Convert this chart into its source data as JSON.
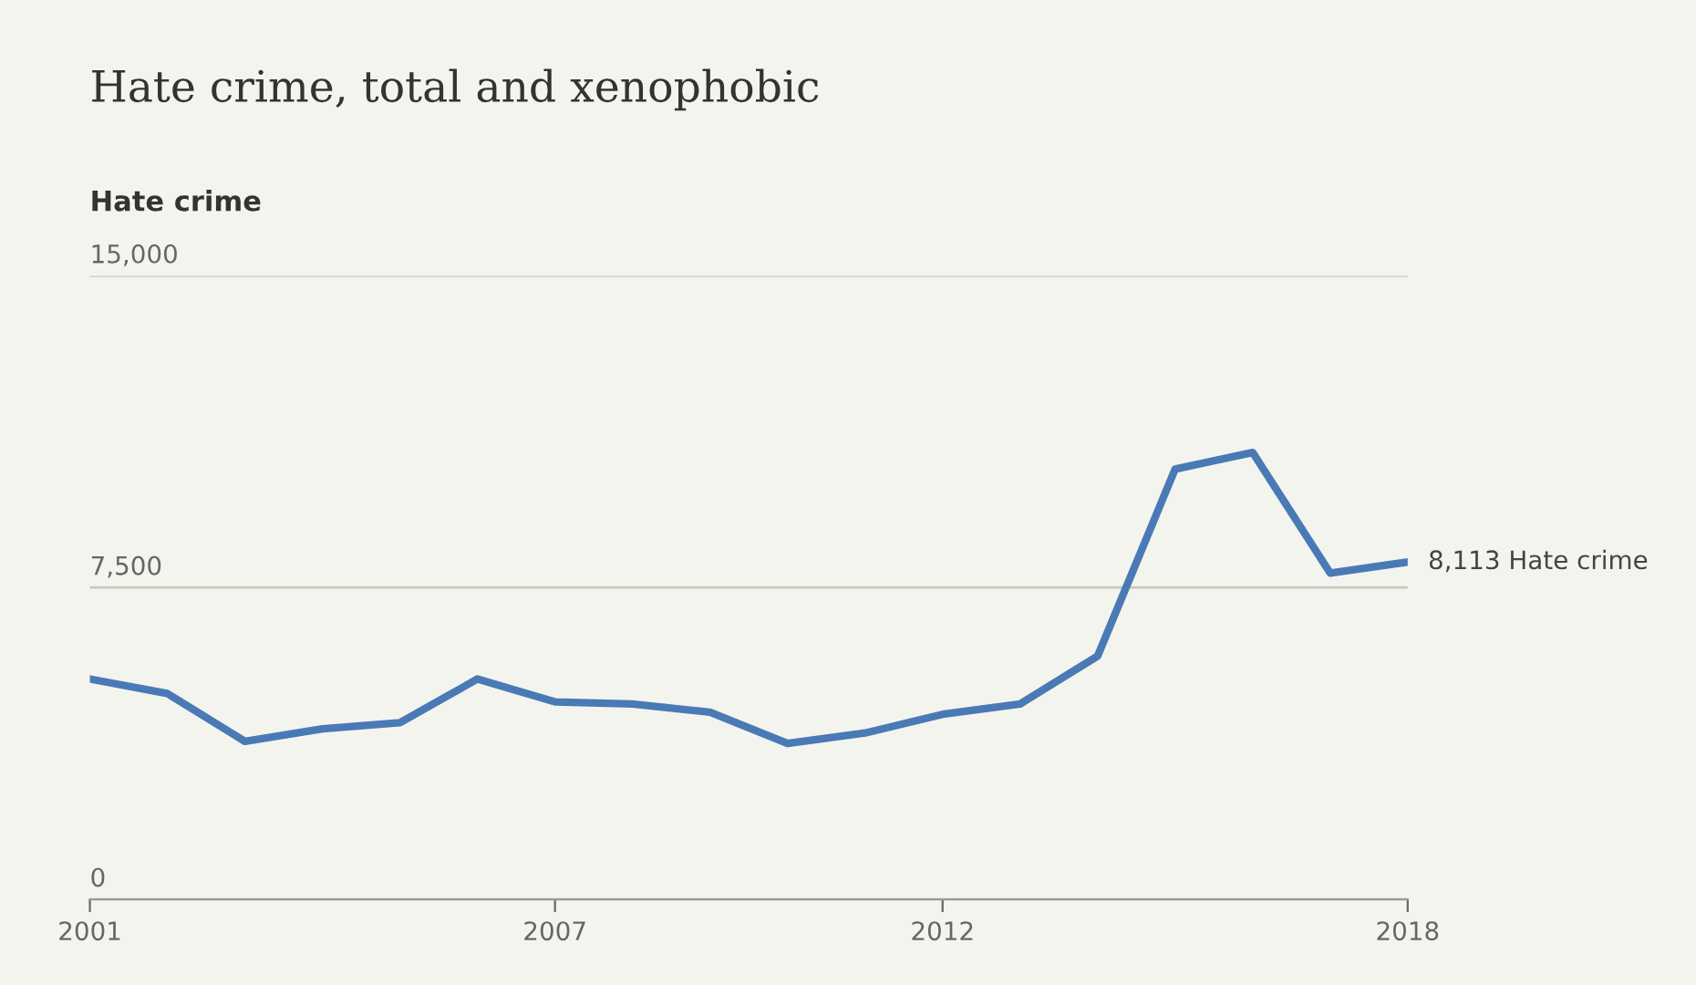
{
  "chart_data": {
    "type": "line",
    "title": "Hate crime, total and xenophobic",
    "ylabel": "Hate crime",
    "x": [
      2001,
      2002,
      2003,
      2004,
      2005,
      2006,
      2007,
      2008,
      2009,
      2010,
      2011,
      2012,
      2013,
      2014,
      2015,
      2016,
      2017,
      2018
    ],
    "series": [
      {
        "color": "#4a7ab5",
        "values": [
          5300,
          4950,
          3800,
          4100,
          4250,
          5300,
          4750,
          4700,
          4500,
          3750,
          4000,
          4450,
          4700,
          5850,
          10350,
          10750,
          7850,
          8113
        ]
      }
    ],
    "xlim": [
      2001,
      2018
    ],
    "xticks": [
      2001,
      2007,
      2012,
      2018
    ],
    "ylim": [
      0,
      15000
    ],
    "yticks": [
      {
        "value": 0,
        "label": "0"
      },
      {
        "value": 7500,
        "label": "7,500"
      },
      {
        "value": 15000,
        "label": "15,000"
      }
    ],
    "grid": "y",
    "legend": false,
    "marker": "none",
    "line_style": "solid",
    "annotations": [
      {
        "text": "8,113 Hate crime",
        "x": 2018,
        "y": 8113
      }
    ]
  }
}
